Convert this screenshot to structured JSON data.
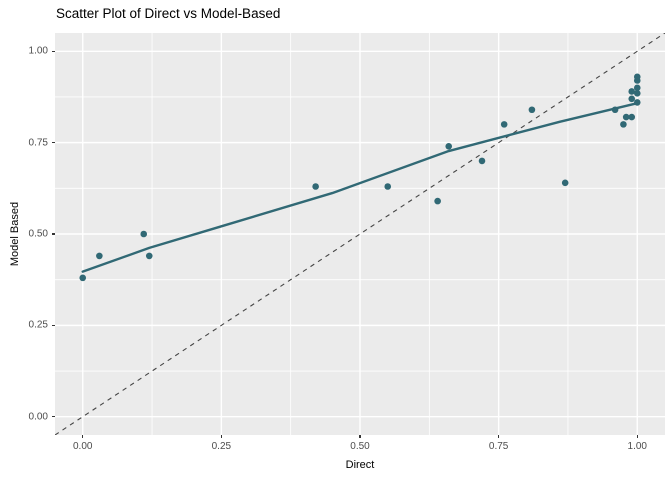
{
  "chart_data": {
    "type": "scatter",
    "title": "Scatter Plot of Direct vs Model-Based",
    "xlabel": "Direct",
    "ylabel": "Model Based",
    "xlim": [
      -0.05,
      1.05
    ],
    "ylim": [
      -0.05,
      1.05
    ],
    "major_ticks": [
      0.0,
      0.25,
      0.5,
      0.75,
      1.0
    ],
    "tick_labels": [
      "0.00",
      "0.25",
      "0.50",
      "0.75",
      "1.00"
    ],
    "minor_ticks": [
      0.125,
      0.375,
      0.625,
      0.875
    ],
    "grid": true,
    "legend": false,
    "points": [
      [
        0.0,
        0.38
      ],
      [
        0.03,
        0.44
      ],
      [
        0.11,
        0.5
      ],
      [
        0.12,
        0.44
      ],
      [
        0.42,
        0.63
      ],
      [
        0.55,
        0.63
      ],
      [
        0.64,
        0.59
      ],
      [
        0.66,
        0.74
      ],
      [
        0.72,
        0.7
      ],
      [
        0.76,
        0.8
      ],
      [
        0.81,
        0.84
      ],
      [
        0.87,
        0.64
      ],
      [
        0.96,
        0.84
      ],
      [
        0.975,
        0.8
      ],
      [
        0.98,
        0.82
      ],
      [
        0.99,
        0.82
      ],
      [
        0.99,
        0.87
      ],
      [
        1.0,
        0.86
      ],
      [
        0.99,
        0.89
      ],
      [
        1.0,
        0.885
      ],
      [
        1.0,
        0.9
      ],
      [
        1.0,
        0.92
      ],
      [
        1.0,
        0.93
      ]
    ],
    "trend_line": [
      [
        0.0,
        0.397
      ],
      [
        0.12,
        0.462
      ],
      [
        0.25,
        0.521
      ],
      [
        0.45,
        0.612
      ],
      [
        0.66,
        0.727
      ],
      [
        0.86,
        0.807
      ],
      [
        1.0,
        0.858
      ]
    ],
    "identity_line": {
      "from": [
        -0.05,
        -0.05
      ],
      "to": [
        1.05,
        1.05
      ],
      "style": "dashed"
    },
    "colors": {
      "point": "#316975",
      "trend": "#316975",
      "panel": "#EBEBEB",
      "grid": "#FFFFFF",
      "identity": "#454545",
      "tick_text": "#4D4D4D",
      "text": "#000000"
    }
  }
}
